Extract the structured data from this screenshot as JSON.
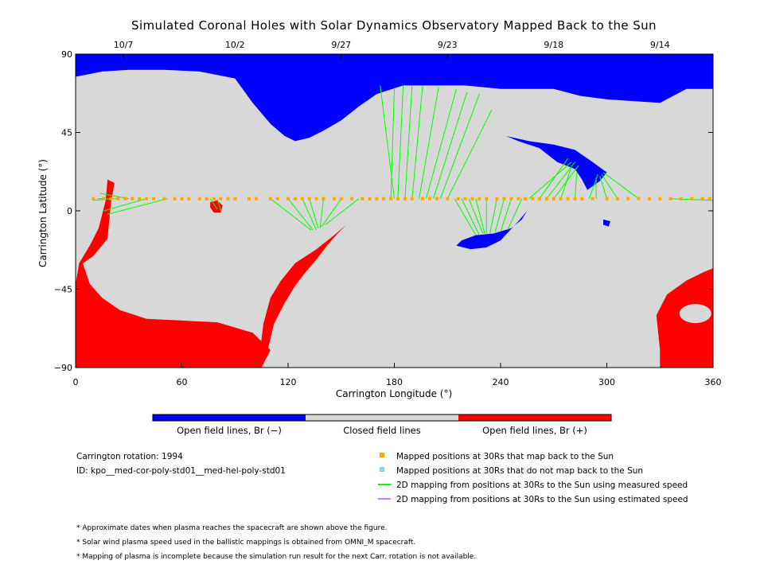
{
  "chart_data": {
    "type": "map",
    "title": "Simulated Coronal Holes with Solar Dynamics Observatory Mapped Back to the Sun",
    "xlabel": "Carrington Longitude (°)",
    "ylabel": "Carrington Latitude (°)",
    "xlim": [
      0,
      360
    ],
    "ylim": [
      -90,
      90
    ],
    "x_ticks": [
      0,
      60,
      120,
      180,
      240,
      300,
      360
    ],
    "y_ticks": [
      90,
      45,
      0,
      -45,
      -90
    ],
    "y_tick_labels": [
      "90",
      "45",
      "0",
      "−45",
      "−90"
    ],
    "date_ticks": [
      {
        "lon": 27,
        "label": "10/7"
      },
      {
        "lon": 90,
        "label": "10/2"
      },
      {
        "lon": 150,
        "label": "9/27"
      },
      {
        "lon": 210,
        "label": "9/23"
      },
      {
        "lon": 270,
        "label": "9/18"
      },
      {
        "lon": 330,
        "label": "9/14"
      }
    ],
    "colors": {
      "open_negative": "#0000ff",
      "closed": "#d8d8d8",
      "open_positive": "#ff0000",
      "mapped_back": "#ffa500",
      "not_mapped": "#87cefa",
      "measured_line": "#00ff00",
      "estimated_line": "#c080ff"
    },
    "regions": {
      "north_negative_hole": [
        [
          0,
          90
        ],
        [
          360,
          90
        ],
        [
          360,
          70
        ],
        [
          345,
          70
        ],
        [
          330,
          62
        ],
        [
          315,
          63
        ],
        [
          300,
          64
        ],
        [
          285,
          66
        ],
        [
          270,
          70
        ],
        [
          255,
          70
        ],
        [
          240,
          70
        ],
        [
          220,
          72
        ],
        [
          200,
          72
        ],
        [
          185,
          72
        ],
        [
          170,
          67
        ],
        [
          160,
          60
        ],
        [
          150,
          52
        ],
        [
          140,
          46
        ],
        [
          132,
          42
        ],
        [
          124,
          40
        ],
        [
          118,
          43
        ],
        [
          110,
          50
        ],
        [
          100,
          62
        ],
        [
          90,
          76
        ],
        [
          70,
          80
        ],
        [
          50,
          81
        ],
        [
          30,
          81
        ],
        [
          15,
          80
        ],
        [
          5,
          78
        ],
        [
          0,
          77
        ]
      ],
      "mid_negative_hole": [
        [
          243,
          43
        ],
        [
          256,
          40
        ],
        [
          270,
          38
        ],
        [
          282,
          35
        ],
        [
          292,
          28
        ],
        [
          300,
          22
        ],
        [
          296,
          17
        ],
        [
          289,
          12
        ],
        [
          286,
          18
        ],
        [
          282,
          24
        ],
        [
          272,
          28
        ],
        [
          262,
          36
        ],
        [
          250,
          40
        ]
      ],
      "south_blue_hole": [
        [
          218,
          -17
        ],
        [
          226,
          -14
        ],
        [
          236,
          -13
        ],
        [
          246,
          -10
        ],
        [
          252,
          -5
        ],
        [
          255,
          0
        ],
        [
          250,
          -6
        ],
        [
          240,
          -17
        ],
        [
          232,
          -21
        ],
        [
          223,
          -22
        ],
        [
          215,
          -20
        ]
      ],
      "small_blue_spot": [
        [
          298,
          -5
        ],
        [
          302,
          -6
        ],
        [
          301,
          -9
        ],
        [
          298,
          -8
        ]
      ],
      "south_positive_hole": [
        [
          0,
          -33
        ],
        [
          10,
          -26
        ],
        [
          18,
          -16
        ],
        [
          20,
          5
        ],
        [
          22,
          16
        ],
        [
          18,
          18
        ],
        [
          17,
          6
        ],
        [
          13,
          -10
        ],
        [
          8,
          -20
        ],
        [
          2,
          -30
        ],
        [
          0,
          -42
        ],
        [
          0,
          -90
        ],
        [
          105,
          -90
        ],
        [
          110,
          -80
        ],
        [
          100,
          -70
        ],
        [
          80,
          -64
        ],
        [
          60,
          -63
        ],
        [
          40,
          -62
        ],
        [
          25,
          -57
        ],
        [
          15,
          -50
        ],
        [
          8,
          -42
        ],
        [
          4,
          -30
        ]
      ],
      "south_positive_tongue": [
        [
          108,
          -82
        ],
        [
          112,
          -65
        ],
        [
          118,
          -53
        ],
        [
          124,
          -43
        ],
        [
          130,
          -35
        ],
        [
          136,
          -28
        ],
        [
          142,
          -20
        ],
        [
          148,
          -13
        ],
        [
          153,
          -8
        ],
        [
          146,
          -14
        ],
        [
          136,
          -22
        ],
        [
          124,
          -30
        ],
        [
          116,
          -40
        ],
        [
          110,
          -50
        ],
        [
          106,
          -65
        ],
        [
          104,
          -82
        ]
      ],
      "small_red_spot": [
        [
          76,
          5
        ],
        [
          80,
          6
        ],
        [
          83,
          3
        ],
        [
          82,
          -1
        ],
        [
          78,
          -1
        ],
        [
          76,
          2
        ]
      ],
      "sw_positive_hole": [
        [
          330,
          -80
        ],
        [
          328,
          -60
        ],
        [
          334,
          -48
        ],
        [
          345,
          -40
        ],
        [
          355,
          -35
        ],
        [
          360,
          -33
        ],
        [
          360,
          -90
        ],
        [
          330,
          -90
        ]
      ]
    },
    "spacecraft_lat": 7,
    "mapped_positions_lon": [
      10,
      16,
      20,
      24,
      28,
      32,
      36,
      40,
      44,
      50,
      56,
      60,
      64,
      70,
      74,
      78,
      82,
      86,
      90,
      98,
      102,
      110,
      114,
      120,
      124,
      128,
      132,
      136,
      140,
      146,
      150,
      156,
      162,
      166,
      170,
      174,
      178,
      182,
      186,
      190,
      196,
      200,
      204,
      210,
      216,
      220,
      224,
      228,
      232,
      238,
      242,
      246,
      250,
      254,
      258,
      262,
      266,
      270,
      274,
      278,
      282,
      286,
      292,
      300,
      306,
      312,
      318,
      324,
      330,
      336,
      342,
      348,
      354,
      358
    ],
    "mapping_lines": [
      {
        "from": [
          20,
          7
        ],
        "to": [
          10,
          6
        ]
      },
      {
        "from": [
          24,
          7
        ],
        "to": [
          12,
          7
        ]
      },
      {
        "from": [
          30,
          7
        ],
        "to": [
          14,
          10
        ]
      },
      {
        "from": [
          40,
          7
        ],
        "to": [
          16,
          0
        ]
      },
      {
        "from": [
          52,
          7
        ],
        "to": [
          18,
          -2
        ]
      },
      {
        "from": [
          76,
          7
        ],
        "to": [
          80,
          1
        ]
      },
      {
        "from": [
          80,
          7
        ],
        "to": [
          82,
          0
        ]
      },
      {
        "from": [
          110,
          7
        ],
        "to": [
          133,
          -11
        ]
      },
      {
        "from": [
          120,
          7
        ],
        "to": [
          134,
          -11
        ]
      },
      {
        "from": [
          128,
          7
        ],
        "to": [
          136,
          -11
        ]
      },
      {
        "from": [
          132,
          7
        ],
        "to": [
          137,
          -10
        ]
      },
      {
        "from": [
          140,
          7
        ],
        "to": [
          138,
          -10
        ]
      },
      {
        "from": [
          150,
          7
        ],
        "to": [
          139,
          -9
        ]
      },
      {
        "from": [
          160,
          7
        ],
        "to": [
          141,
          -8
        ]
      },
      {
        "from": [
          178,
          7
        ],
        "to": [
          180,
          70
        ]
      },
      {
        "from": [
          180,
          7
        ],
        "to": [
          172,
          72
        ]
      },
      {
        "from": [
          182,
          7
        ],
        "to": [
          185,
          72
        ]
      },
      {
        "from": [
          186,
          7
        ],
        "to": [
          190,
          72
        ]
      },
      {
        "from": [
          190,
          7
        ],
        "to": [
          196,
          72
        ]
      },
      {
        "from": [
          194,
          7
        ],
        "to": [
          205,
          71
        ]
      },
      {
        "from": [
          198,
          7
        ],
        "to": [
          215,
          70
        ]
      },
      {
        "from": [
          202,
          7
        ],
        "to": [
          221,
          68
        ]
      },
      {
        "from": [
          206,
          7
        ],
        "to": [
          228,
          67
        ]
      },
      {
        "from": [
          210,
          7
        ],
        "to": [
          235,
          58
        ]
      },
      {
        "from": [
          214,
          7
        ],
        "to": [
          226,
          -14
        ]
      },
      {
        "from": [
          218,
          7
        ],
        "to": [
          228,
          -14
        ]
      },
      {
        "from": [
          222,
          7
        ],
        "to": [
          230,
          -13
        ]
      },
      {
        "from": [
          226,
          7
        ],
        "to": [
          231,
          -13
        ]
      },
      {
        "from": [
          232,
          7
        ],
        "to": [
          232,
          -13
        ]
      },
      {
        "from": [
          238,
          7
        ],
        "to": [
          234,
          -13
        ]
      },
      {
        "from": [
          242,
          7
        ],
        "to": [
          237,
          -12
        ]
      },
      {
        "from": [
          246,
          7
        ],
        "to": [
          240,
          -12
        ]
      },
      {
        "from": [
          252,
          7
        ],
        "to": [
          244,
          -11
        ]
      },
      {
        "from": [
          256,
          7
        ],
        "to": [
          280,
          28
        ]
      },
      {
        "from": [
          262,
          7
        ],
        "to": [
          278,
          30
        ]
      },
      {
        "from": [
          266,
          7
        ],
        "to": [
          282,
          28
        ]
      },
      {
        "from": [
          270,
          7
        ],
        "to": [
          284,
          26
        ]
      },
      {
        "from": [
          274,
          7
        ],
        "to": [
          280,
          25
        ]
      },
      {
        "from": [
          282,
          7
        ],
        "to": [
          283,
          22
        ]
      },
      {
        "from": [
          290,
          7
        ],
        "to": [
          295,
          21
        ]
      },
      {
        "from": [
          294,
          7
        ],
        "to": [
          294,
          19
        ]
      },
      {
        "from": [
          300,
          7
        ],
        "to": [
          296,
          20
        ]
      },
      {
        "from": [
          306,
          7
        ],
        "to": [
          297,
          21
        ]
      },
      {
        "from": [
          318,
          7
        ],
        "to": [
          298,
          22
        ]
      },
      {
        "from": [
          336,
          7
        ],
        "to": [
          360,
          6
        ]
      }
    ]
  },
  "colorbar": {
    "left_label": "Open field lines, Br (−)",
    "middle_label": "Closed field lines",
    "right_label": "Open field lines, Br (+)"
  },
  "info": {
    "rotation": "Carrington rotation: 1994",
    "id": "ID: kpo__med-cor-poly-std01__med-hel-poly-std01"
  },
  "legend": {
    "mapped": "Mapped positions at 30Rs that map back to the Sun",
    "not_mapped": "Mapped positions at 30Rs that do not map back to the Sun",
    "measured": "2D mapping from positions at 30Rs to the Sun using measured speed",
    "estimated": "2D mapping from positions at 30Rs to the Sun using estimated speed"
  },
  "notes": [
    "* Approximate dates when plasma reaches the spacecraft are shown above the figure.",
    "* Solar wind plasma speed used in the ballistic mappings is obtained from OMNI_M spacecraft.",
    "* Mapping of plasma is incomplete because the simulation run result for the next Carr. rotation is not available."
  ]
}
